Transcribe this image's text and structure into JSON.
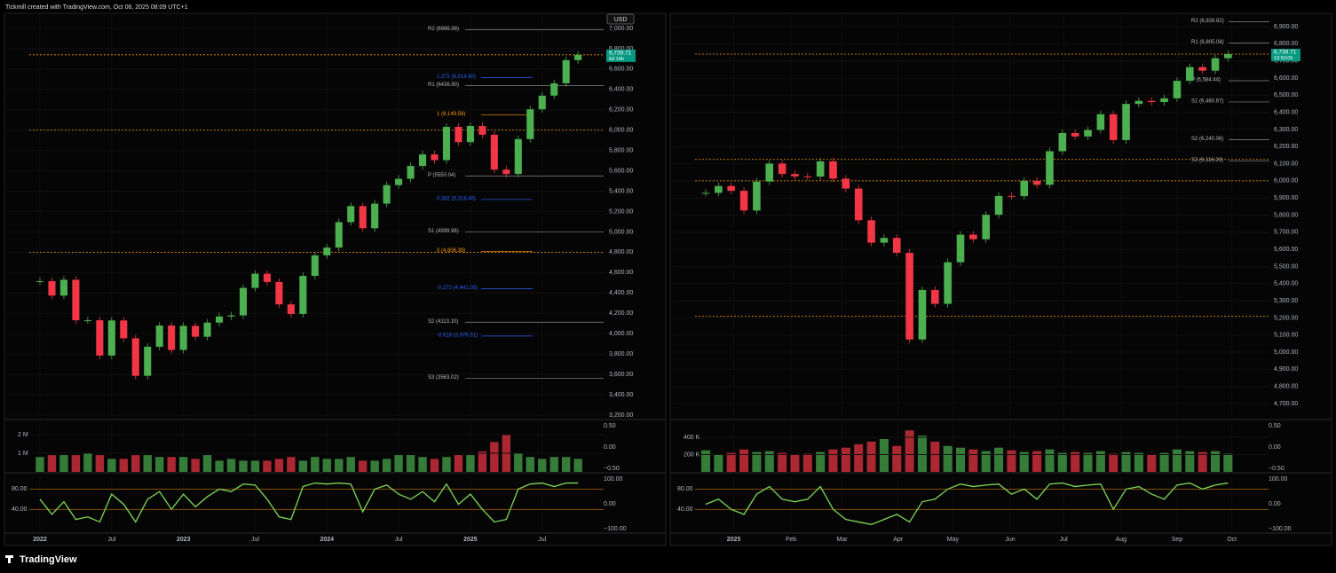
{
  "header": "Tickmill created with TradingView.com, Oct 06, 2025 08:09 UTC+1",
  "footer": "TradingView",
  "chart_data": [
    {
      "type": "candlestick-line",
      "currency": "USD",
      "values": [
        4516,
        4374,
        4530,
        4132,
        4132,
        3785,
        4130,
        3955,
        3586,
        3872,
        4080,
        3840,
        4077,
        3970,
        4109,
        4169,
        4180,
        4450,
        4589,
        4508,
        4288,
        4194,
        4568,
        4770,
        4846,
        5096,
        5254,
        5036,
        5278,
        5460,
        5522,
        5648,
        5762,
        5705,
        6032,
        5882,
        6041,
        5955,
        5612,
        5569,
        5912,
        6205,
        6339,
        6460,
        6688,
        6740
      ],
      "volume": [
        800000,
        900000,
        900000,
        900000,
        1000000,
        900000,
        700000,
        700000,
        900000,
        900000,
        800000,
        800000,
        800000,
        700000,
        900000,
        600000,
        700000,
        600000,
        600000,
        600000,
        700000,
        800000,
        600000,
        800000,
        700000,
        700000,
        800000,
        600000,
        600000,
        700000,
        900000,
        900000,
        800000,
        700000,
        800000,
        900000,
        900000,
        1100000,
        1600000,
        2000000,
        1000000,
        800000,
        700000,
        800000,
        800000,
        700000
      ],
      "oscillator": [
        60,
        30,
        55,
        20,
        25,
        15,
        70,
        50,
        15,
        60,
        75,
        40,
        70,
        45,
        65,
        80,
        75,
        90,
        88,
        60,
        25,
        20,
        85,
        92,
        90,
        92,
        90,
        35,
        80,
        88,
        70,
        60,
        75,
        55,
        90,
        50,
        70,
        40,
        15,
        20,
        80,
        90,
        92,
        85,
        92,
        92
      ],
      "colors": {
        "up": "#4caf50",
        "down": "#f23645"
      },
      "ylim": [
        3165,
        7148
      ],
      "yticks": [
        {
          "value": 7000,
          "label": "7,000.00"
        },
        {
          "value": 6800,
          "label": "6,800.00"
        },
        {
          "value": 6600,
          "label": "6,600.00"
        },
        {
          "value": 6400,
          "label": "6,400.00"
        },
        {
          "value": 6200,
          "label": "6,200.00"
        },
        {
          "value": 6000,
          "label": "6,000.00"
        },
        {
          "value": 5800,
          "label": "5,800.00"
        },
        {
          "value": 5600,
          "label": "5,600.00"
        },
        {
          "value": 5400,
          "label": "5,400.00"
        },
        {
          "value": 5200,
          "label": "5,200.00"
        },
        {
          "value": 5000,
          "label": "5,000.00"
        },
        {
          "value": 4800,
          "label": "4,800.00"
        },
        {
          "value": 4600,
          "label": "4,600.00"
        },
        {
          "value": 4400,
          "label": "4,400.00"
        },
        {
          "value": 4200,
          "label": "4,200.00"
        },
        {
          "value": 4000,
          "label": "4,000.00"
        },
        {
          "value": 3800,
          "label": "3,800.00"
        },
        {
          "value": 3600,
          "label": "3,600.00"
        },
        {
          "value": 3400,
          "label": "3,400.00"
        },
        {
          "value": 3200,
          "label": "3,200.00"
        }
      ],
      "xticks": [
        {
          "value": 0,
          "label": "2022"
        },
        {
          "value": 6,
          "label": "Jul"
        },
        {
          "value": 12,
          "label": "2023"
        },
        {
          "value": 18,
          "label": "Jul"
        },
        {
          "value": 24,
          "label": "2024"
        },
        {
          "value": 30,
          "label": "Jul"
        },
        {
          "value": 36,
          "label": "2025"
        },
        {
          "value": 42,
          "label": "Jul"
        }
      ],
      "last_price": {
        "value": 6739.71,
        "label": "6,739.71",
        "countdown": "6d 14h"
      },
      "levels": [
        6740,
        6000,
        4800
      ],
      "pivots": [
        {
          "label": "R2 (6986.98)",
          "value": 6986.98
        },
        {
          "label": "R1 (6436.90)",
          "value": 6436.9
        },
        {
          "label": "P (5550.04)",
          "value": 5550.04
        },
        {
          "label": "S1 (4999.96)",
          "value": 4999.96
        },
        {
          "label": "S2 (4113.10)",
          "value": 4113.1
        },
        {
          "label": "S3 (3563.02)",
          "value": 3563.02
        }
      ],
      "fibs": [
        {
          "label": "1.272 (6,514.80)",
          "value": 6514.8,
          "color": "#2962ff"
        },
        {
          "label": "1 (6,149.58)",
          "value": 6149.58,
          "color": "#ff9800"
        },
        {
          "label": "0.382 (5,318.46)",
          "value": 5318.46,
          "color": "#2962ff"
        },
        {
          "label": "0 (4,806.39)",
          "value": 4806.39,
          "color": "#ff9800"
        },
        {
          "label": "-0.272 (4,441.05)",
          "value": 4441.05,
          "color": "#2962ff"
        },
        {
          "label": "-0.618 (3,976.31)",
          "value": 3976.31,
          "color": "#2962ff"
        }
      ],
      "vol_ylim": [
        0,
        2760000
      ],
      "vol_ticks": [
        {
          "value": 2000000,
          "label": "2 M"
        },
        {
          "value": 1000000,
          "label": "1 M"
        }
      ],
      "vol_axis2": [
        "0.50",
        "0.00",
        "−0.50"
      ],
      "osc_ylim": [
        0,
        100
      ],
      "osc_ticks": [
        {
          "value": 80,
          "label": "80.00"
        },
        {
          "value": 40,
          "label": "40.00"
        }
      ],
      "osc_axis2": [
        "100.00",
        "0.00",
        "−100.00"
      ]
    },
    {
      "type": "candlestick-line",
      "values": [
        5930,
        5970,
        5942,
        5827,
        5996,
        6101,
        6040,
        6026,
        6025,
        6114,
        6013,
        5955,
        5770,
        5639,
        5667,
        5580,
        5074,
        5363,
        5282,
        5525,
        5686,
        5659,
        5802,
        5912,
        5911,
        6000,
        5977,
        6173,
        6279,
        6259,
        6297,
        6389,
        6238,
        6449,
        6467,
        6460,
        6482,
        6584,
        6664,
        6643,
        6716,
        6740
      ],
      "volume": [
        250000,
        200000,
        220000,
        260000,
        230000,
        240000,
        220000,
        200000,
        210000,
        230000,
        260000,
        280000,
        320000,
        350000,
        380000,
        300000,
        480000,
        420000,
        350000,
        300000,
        280000,
        260000,
        240000,
        280000,
        250000,
        230000,
        240000,
        260000,
        220000,
        230000,
        220000,
        240000,
        210000,
        230000,
        220000,
        200000,
        220000,
        260000,
        240000,
        230000,
        240000,
        210000
      ],
      "oscillator": [
        50,
        60,
        40,
        30,
        70,
        85,
        60,
        55,
        60,
        85,
        40,
        20,
        15,
        10,
        20,
        30,
        15,
        55,
        60,
        80,
        90,
        85,
        88,
        90,
        70,
        80,
        60,
        90,
        92,
        85,
        88,
        90,
        40,
        80,
        85,
        70,
        60,
        88,
        92,
        80,
        88,
        92
      ],
      "colors": {
        "up": "#4caf50",
        "down": "#f23645"
      },
      "ylim": [
        4612,
        6978
      ],
      "yticks": [
        {
          "value": 6900,
          "label": "6,900.00"
        },
        {
          "value": 6800,
          "label": "6,800.00"
        },
        {
          "value": 6700,
          "label": "6,700.00"
        },
        {
          "value": 6600,
          "label": "6,600.00"
        },
        {
          "value": 6500,
          "label": "6,500.00"
        },
        {
          "value": 6400,
          "label": "6,400.00"
        },
        {
          "value": 6300,
          "label": "6,300.00"
        },
        {
          "value": 6200,
          "label": "6,200.00"
        },
        {
          "value": 6100,
          "label": "6,100.00"
        },
        {
          "value": 6000,
          "label": "6,000.00"
        },
        {
          "value": 5900,
          "label": "5,900.00"
        },
        {
          "value": 5800,
          "label": "5,800.00"
        },
        {
          "value": 5700,
          "label": "5,700.00"
        },
        {
          "value": 5600,
          "label": "5,600.00"
        },
        {
          "value": 5500,
          "label": "5,500.00"
        },
        {
          "value": 5400,
          "label": "5,400.00"
        },
        {
          "value": 5300,
          "label": "5,300.00"
        },
        {
          "value": 5200,
          "label": "5,200.00"
        },
        {
          "value": 5100,
          "label": "5,100.00"
        },
        {
          "value": 5000,
          "label": "5,000.00"
        },
        {
          "value": 4900,
          "label": "4,900.00"
        },
        {
          "value": 4800,
          "label": "4,800.00"
        },
        {
          "value": 4700,
          "label": "4,700.00"
        }
      ],
      "xticks": [
        {
          "value": 2.2,
          "label": "2025"
        },
        {
          "value": 6.7,
          "label": "Feb"
        },
        {
          "value": 10.7,
          "label": "Mar"
        },
        {
          "value": 15.1,
          "label": "Apr"
        },
        {
          "value": 19.4,
          "label": "May"
        },
        {
          "value": 23.9,
          "label": "Jun"
        },
        {
          "value": 28.1,
          "label": "Jul"
        },
        {
          "value": 32.6,
          "label": "Aug"
        },
        {
          "value": 37.0,
          "label": "Sep"
        },
        {
          "value": 41.3,
          "label": "Oct"
        }
      ],
      "last_price": {
        "value": 6739.71,
        "label": "6,739.71",
        "countdown": "13:50:05"
      },
      "levels": [
        6740,
        6125,
        6000,
        5210
      ],
      "pivots": [
        {
          "label": "R2 (6,928.82)",
          "value": 6928.82
        },
        {
          "label": "R1 (6,805.08)",
          "value": 6805.08
        },
        {
          "label": "P (6,584.44)",
          "value": 6584.44
        },
        {
          "label": "S1 (6,460.67)",
          "value": 6460.67
        },
        {
          "label": "S2 (6,240.06)",
          "value": 6240.06
        },
        {
          "label": "S3 (6,116.29)",
          "value": 6116.29
        }
      ],
      "fibs": [],
      "vol_ylim": [
        0,
        595000
      ],
      "vol_ticks": [
        {
          "value": 400000,
          "label": "400 K"
        },
        {
          "value": 200000,
          "label": "200 K"
        }
      ],
      "vol_axis2": [
        "0.50",
        "0.00",
        "−0.50"
      ],
      "osc_ylim": [
        0,
        100
      ],
      "osc_ticks": [
        {
          "value": 80,
          "label": "80.00"
        },
        {
          "value": 40,
          "label": "40.00"
        }
      ],
      "osc_axis2": [
        "100.00",
        "0.00",
        "−100.00"
      ]
    }
  ]
}
